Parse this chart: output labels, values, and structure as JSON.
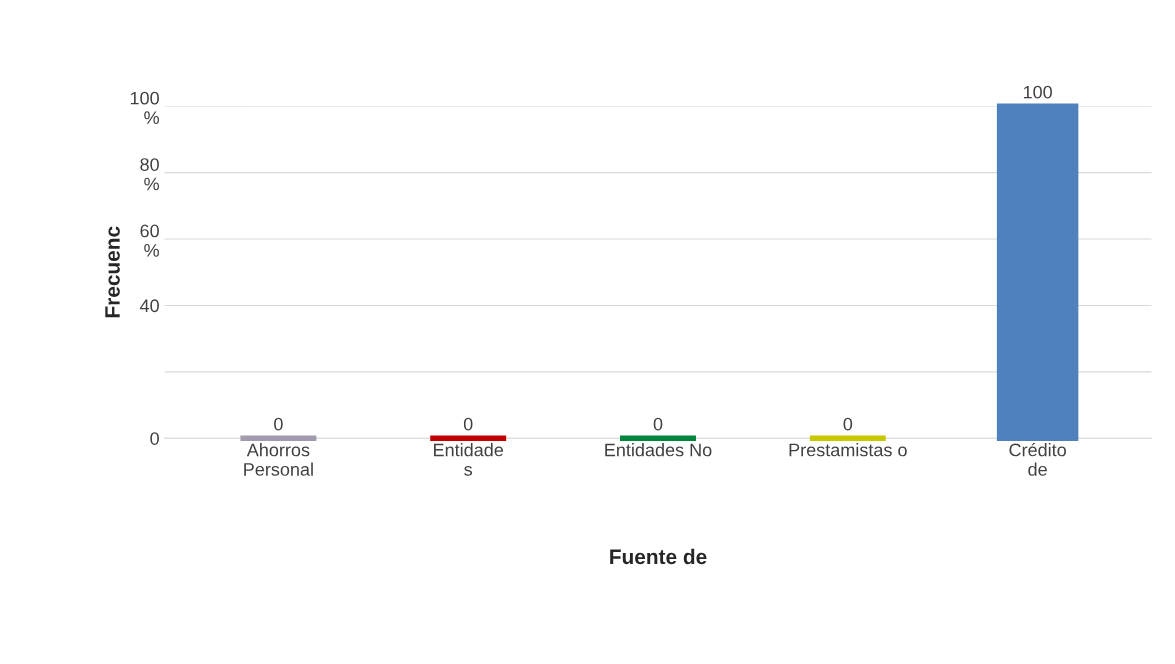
{
  "chart_data": {
    "type": "bar",
    "categories": [
      "Ahorros\nPersonal",
      "Entidade\ns",
      "Entidades No",
      "Prestamistas o",
      "Crédito\nde"
    ],
    "values": [
      0,
      0,
      0,
      0,
      100
    ],
    "colors": [
      "#a29bb0",
      "#c00000",
      "#00853e",
      "#c8c800",
      "#4f81bd"
    ],
    "xlabel": "Fuente de",
    "ylabel": "Frecuenc",
    "ylim": [
      0,
      100
    ],
    "yticks": [
      0,
      {
        "value": 20,
        "label": null
      },
      40,
      {
        "value": 60,
        "label": "60\n%"
      },
      {
        "value": 80,
        "label": "80\n%"
      },
      {
        "value": 100,
        "label": "100\n%"
      }
    ],
    "grid": "y",
    "data_labels": true
  }
}
